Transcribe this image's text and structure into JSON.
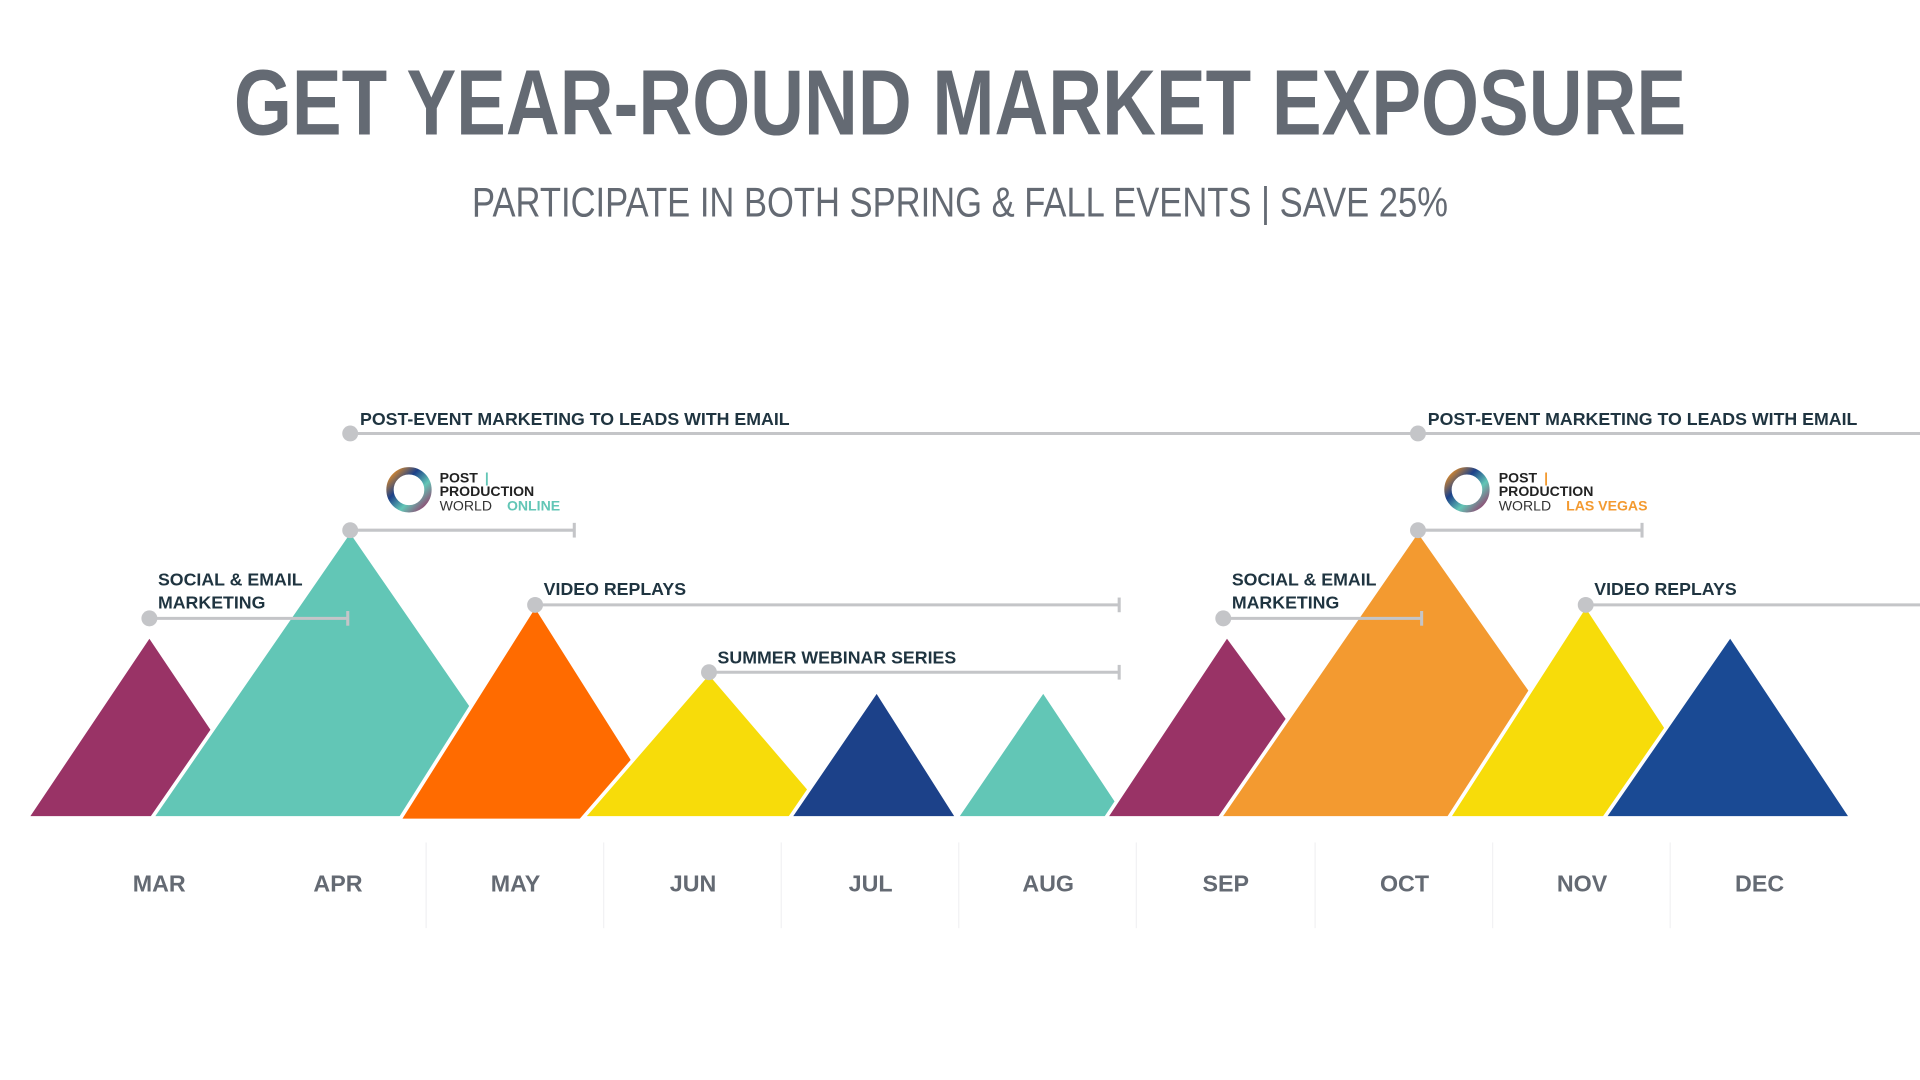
{
  "header": {
    "title": "GET YEAR-ROUND MARKET EXPOSURE",
    "subtitle": "PARTICIPATE IN BOTH SPRING & FALL EVENTS | SAVE 25%"
  },
  "colors": {
    "purple": "#993366",
    "teal": "#62c6b6",
    "orange": "#ff6b00",
    "yellow": "#f7dc0a",
    "navy": "#1c4189",
    "light_orange": "#f39a30",
    "blue": "#1a4a94",
    "connector": "#c4c5c8",
    "text": "#646a73"
  },
  "months": [
    "MAR",
    "APR",
    "MAY",
    "JUN",
    "JUL",
    "AUG",
    "SEP",
    "OCT",
    "NOV",
    "DEC"
  ],
  "spring": {
    "post_event": "POST-EVENT MARKETING TO LEADS WITH EMAIL",
    "social_line1": "SOCIAL & EMAIL",
    "social_line2": "MARKETING",
    "video": "VIDEO REPLAYS",
    "summer": "SUMMER WEBINAR SERIES",
    "logo": {
      "post": "POST",
      "bar": "|",
      "production": "PRODUCTION",
      "world": "WORLD",
      "edition": "ONLINE"
    }
  },
  "fall": {
    "post_event": "POST-EVENT MARKETING TO LEADS WITH EMAIL",
    "social_line1": "SOCIAL & EMAIL",
    "social_line2": "MARKETING",
    "video": "VIDEO REPLAYS",
    "logo": {
      "post": "POST",
      "bar": "|",
      "production": "PRODUCTION",
      "world": "WORLD",
      "edition": "LAS VEGAS"
    }
  }
}
